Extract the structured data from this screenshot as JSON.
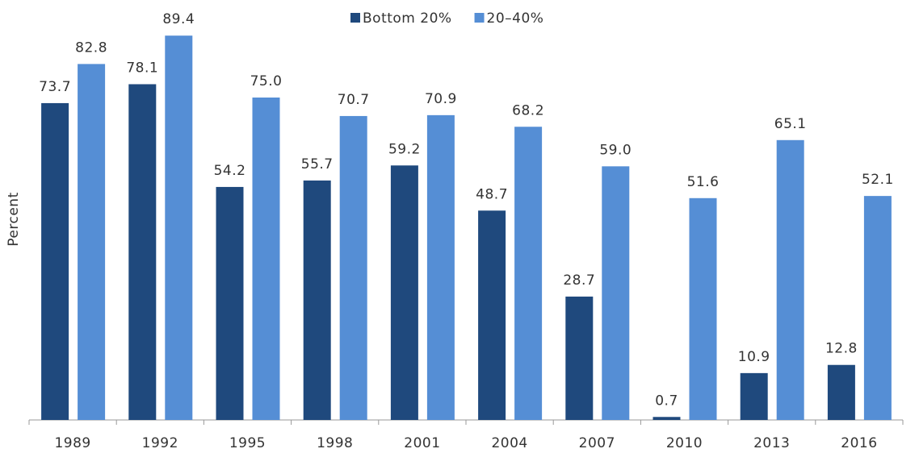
{
  "chart_data": {
    "type": "bar",
    "y_label": "Percent",
    "categories": [
      "1989",
      "1992",
      "1995",
      "1998",
      "2001",
      "2004",
      "2007",
      "2010",
      "2013",
      "2016"
    ],
    "series": [
      {
        "name": "Bottom 20%",
        "color": "#1f497d",
        "values": [
          73.7,
          78.1,
          54.2,
          55.7,
          59.2,
          48.7,
          28.7,
          0.7,
          10.9,
          12.8
        ],
        "value_labels": [
          "73.7",
          "78.1",
          "54.2",
          "55.7",
          "59.2",
          "48.7",
          "28.7",
          "0.7",
          "10.9",
          "12.8"
        ]
      },
      {
        "name": "20–40%",
        "color": "#558ed5",
        "values": [
          82.8,
          89.4,
          75.0,
          70.7,
          70.9,
          68.2,
          59.0,
          51.6,
          65.1,
          52.1
        ],
        "value_labels": [
          "82.8",
          "89.4",
          "75.0",
          "70.7",
          "70.9",
          "68.2",
          "59.0",
          "51.6",
          "65.1",
          "52.1"
        ]
      }
    ],
    "ylim": [
      0,
      90
    ],
    "legend": "top"
  }
}
